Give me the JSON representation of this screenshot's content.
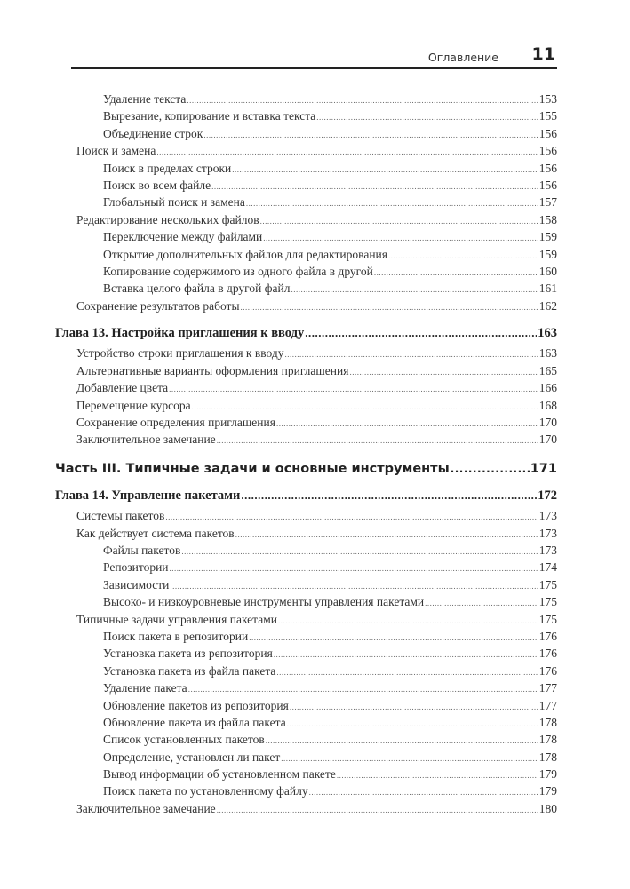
{
  "header": {
    "section_title": "Оглавление",
    "page_number": "11"
  },
  "entries": [
    {
      "level": 2,
      "title": "Удаление текста",
      "page": "153"
    },
    {
      "level": 2,
      "title": "Вырезание, копирование и вставка текста",
      "page": "155"
    },
    {
      "level": 2,
      "title": "Объединение строк",
      "page": "156"
    },
    {
      "level": 1,
      "title": "Поиск и замена",
      "page": "156"
    },
    {
      "level": 2,
      "title": "Поиск в пределах строки",
      "page": "156"
    },
    {
      "level": 2,
      "title": "Поиск во всем файле",
      "page": "156"
    },
    {
      "level": 2,
      "title": "Глобальный поиск и замена",
      "page": "157"
    },
    {
      "level": 1,
      "title": "Редактирование нескольких файлов",
      "page": "158"
    },
    {
      "level": 2,
      "title": "Переключение между файлами",
      "page": "159"
    },
    {
      "level": 2,
      "title": "Открытие дополнительных файлов для редактирования",
      "page": "159"
    },
    {
      "level": 2,
      "title": "Копирование содержимого из одного файла в другой",
      "page": "160"
    },
    {
      "level": 2,
      "title": "Вставка целого файла в другой файл",
      "page": "161"
    },
    {
      "level": 1,
      "title": "Сохранение результатов работы",
      "page": "162"
    },
    {
      "level": "chapter",
      "title": "Глава 13. Настройка приглашения к вводу",
      "page": "163"
    },
    {
      "level": 1,
      "title": "Устройство строки приглашения к вводу",
      "page": "163"
    },
    {
      "level": 1,
      "title": "Альтернативные варианты оформления приглашения",
      "page": "165"
    },
    {
      "level": 1,
      "title": "Добавление цвета",
      "page": "166"
    },
    {
      "level": 1,
      "title": "Перемещение курсора",
      "page": "168"
    },
    {
      "level": 1,
      "title": "Сохранение определения приглашения",
      "page": "170"
    },
    {
      "level": 1,
      "title": "Заключительное замечание",
      "page": "170"
    },
    {
      "level": "part",
      "title": "Часть III. Типичные задачи и основные инструменты",
      "page": "171"
    },
    {
      "level": "chapter",
      "title": "Глава 14. Управление пакетами",
      "page": "172"
    },
    {
      "level": 1,
      "title": "Системы пакетов",
      "page": "173"
    },
    {
      "level": 1,
      "title": "Как действует система пакетов",
      "page": "173"
    },
    {
      "level": 2,
      "title": "Файлы пакетов",
      "page": "173"
    },
    {
      "level": 2,
      "title": "Репозитории",
      "page": "174"
    },
    {
      "level": 2,
      "title": "Зависимости",
      "page": "175"
    },
    {
      "level": 2,
      "title": "Высоко- и низкоуровневые инструменты управления пакетами",
      "page": "175"
    },
    {
      "level": 1,
      "title": "Типичные задачи управления пакетами",
      "page": "175"
    },
    {
      "level": 2,
      "title": "Поиск пакета в репозитории",
      "page": "176"
    },
    {
      "level": 2,
      "title": "Установка пакета из репозитория",
      "page": "176"
    },
    {
      "level": 2,
      "title": "Установка пакета из файла пакета",
      "page": "176"
    },
    {
      "level": 2,
      "title": "Удаление пакета",
      "page": "177"
    },
    {
      "level": 2,
      "title": "Обновление пакетов из репозитория",
      "page": "177"
    },
    {
      "level": 2,
      "title": "Обновление пакета из файла пакета",
      "page": "178"
    },
    {
      "level": 2,
      "title": "Список установленных пакетов",
      "page": "178"
    },
    {
      "level": 2,
      "title": "Определение, установлен ли пакет",
      "page": "178"
    },
    {
      "level": 2,
      "title": "Вывод информации об установленном пакете",
      "page": "179"
    },
    {
      "level": 2,
      "title": "Поиск пакета по установленному файлу",
      "page": "179"
    },
    {
      "level": 1,
      "title": "Заключительное замечание",
      "page": "180"
    }
  ]
}
